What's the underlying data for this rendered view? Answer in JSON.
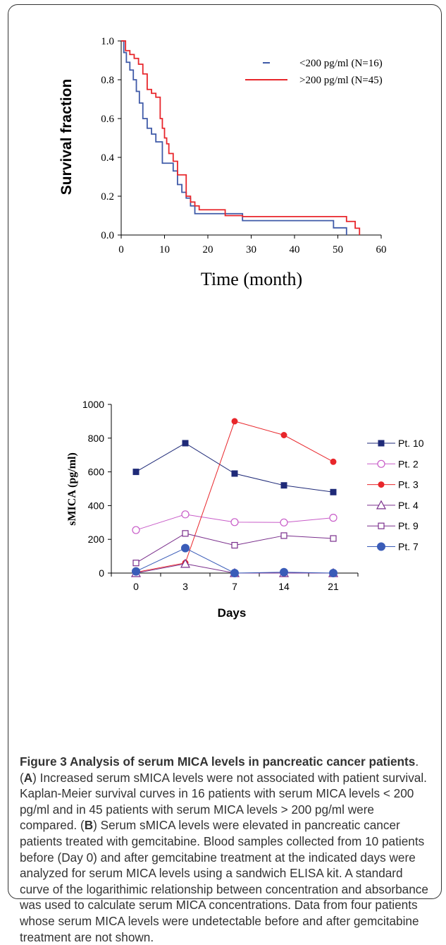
{
  "chart_data": [
    {
      "type": "line",
      "subtype": "kaplan-meier-step",
      "xlabel": "Time (month)",
      "ylabel": "Survival fraction",
      "xlim": [
        0,
        60
      ],
      "ylim": [
        0,
        1.0
      ],
      "xticks": [
        "0",
        "10",
        "20",
        "30",
        "40",
        "50",
        "60"
      ],
      "yticks": [
        "0.0",
        "0.2",
        "0.4",
        "0.6",
        "0.8",
        "1.0"
      ],
      "legend_position": "top-right",
      "series": [
        {
          "name": "<200 pg/ml (N=16)",
          "color": "#3f5aa8",
          "x": [
            0,
            0.6,
            1.2,
            2.0,
            2.8,
            3.5,
            4.2,
            5.0,
            6.0,
            7.0,
            8.0,
            9.5,
            12.0,
            13.0,
            14.0,
            15.0,
            16.0,
            17.0,
            28.0,
            49.0,
            52.0
          ],
          "y": [
            1.0,
            0.94,
            0.89,
            0.85,
            0.8,
            0.74,
            0.68,
            0.6,
            0.55,
            0.52,
            0.48,
            0.37,
            0.33,
            0.26,
            0.22,
            0.19,
            0.15,
            0.11,
            0.074,
            0.037,
            0.0
          ]
        },
        {
          "name": ">200 pg/ml (N=45)",
          "color": "#e8262b",
          "x": [
            0,
            1.0,
            2.0,
            3.0,
            4.0,
            5.0,
            6.0,
            7.0,
            8.0,
            9.0,
            9.5,
            10.0,
            10.5,
            11.0,
            12.0,
            13.0,
            15.0,
            16.0,
            17.0,
            18.0,
            24.0,
            28.0,
            52.0,
            54.0,
            55.0
          ],
          "y": [
            1.0,
            0.95,
            0.93,
            0.91,
            0.88,
            0.83,
            0.75,
            0.73,
            0.71,
            0.6,
            0.55,
            0.5,
            0.47,
            0.42,
            0.38,
            0.31,
            0.2,
            0.17,
            0.15,
            0.13,
            0.1,
            0.095,
            0.07,
            0.035,
            0.0
          ]
        }
      ]
    },
    {
      "type": "line",
      "xlabel": "Days",
      "ylabel": "sMICA (pg/ml)",
      "categories": [
        "0",
        "3",
        "7",
        "14",
        "21"
      ],
      "yticks": [
        "0",
        "200",
        "400",
        "600",
        "800",
        "1000"
      ],
      "ylim": [
        0,
        1000
      ],
      "legend_position": "right",
      "series": [
        {
          "name": "Pt. 10",
          "color": "#1f2a78",
          "marker": "square-filled",
          "values": [
            600,
            770,
            590,
            520,
            480
          ]
        },
        {
          "name": "Pt. 2",
          "color": "#c85cc8",
          "marker": "circle-open",
          "values": [
            255,
            348,
            302,
            300,
            328
          ]
        },
        {
          "name": "Pt. 3",
          "color": "#e8262b",
          "marker": "circle-filled",
          "values": [
            5,
            60,
            900,
            818,
            660
          ]
        },
        {
          "name": "Pt. 4",
          "color": "#7a2f8c",
          "marker": "triangle-open",
          "values": [
            0,
            55,
            0,
            0,
            0
          ]
        },
        {
          "name": "Pt. 9",
          "color": "#7a2f8c",
          "marker": "square-open",
          "values": [
            60,
            235,
            165,
            222,
            205
          ]
        },
        {
          "name": "Pt. 7",
          "color": "#3a5cb8",
          "marker": "circle-filled-large",
          "values": [
            10,
            148,
            0,
            5,
            0
          ]
        }
      ]
    }
  ],
  "caption": {
    "title": "Figure 3 Analysis of serum MICA levels in pancreatic cancer patients",
    "panel_a_letter": "A",
    "panel_a_text": " Increased serum sMICA levels were not associated with patient survival. Kaplan-Meier survival curves in 16 patients with serum MICA levels < 200 pg/ml and in 45 patients with serum MICA levels > 200 pg/ml were compared. (",
    "panel_b_letter": "B",
    "panel_b_text": ") Serum sMICA levels were elevated in pancreatic cancer patients treated with gemcitabine. Blood samples collected from 10 patients before (Day 0) and after gemcitabine treatment at the indicated days were analyzed for serum MICA levels using a sandwich ELISA kit. A standard curve of the logarithimic relationship between concentration and absorbance was used to calculate serum MICA concentrations. Data from four patients whose serum MICA levels were undetectable before and after gemcitabine treatment are not shown."
  }
}
